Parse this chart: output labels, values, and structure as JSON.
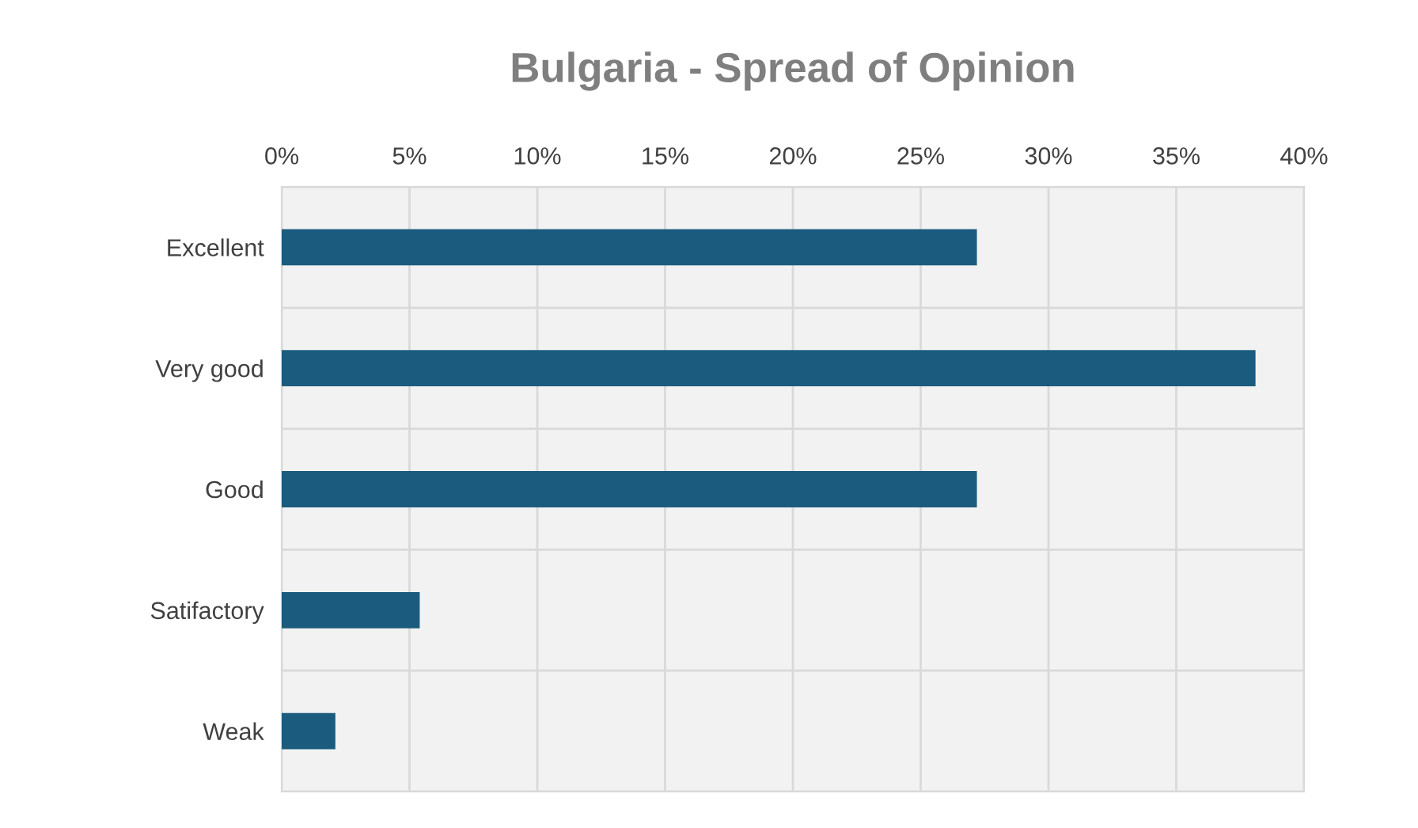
{
  "chart_data": {
    "type": "bar",
    "orientation": "horizontal",
    "title": "Bulgaria - Spread of Opinion",
    "categories": [
      "Excellent",
      "Very good",
      "Good",
      "Satifactory",
      "Weak"
    ],
    "values": [
      27.2,
      38.1,
      27.2,
      5.4,
      2.1
    ],
    "color": "#1b5c7e",
    "xlim": [
      0,
      40
    ],
    "xticks": [
      {
        "value": 0,
        "label": "0%"
      },
      {
        "value": 5,
        "label": "5%"
      },
      {
        "value": 10,
        "label": "10%"
      },
      {
        "value": 15,
        "label": "15%"
      },
      {
        "value": 20,
        "label": "20%"
      },
      {
        "value": 25,
        "label": "25%"
      },
      {
        "value": 30,
        "label": "30%"
      },
      {
        "value": 35,
        "label": "35%"
      },
      {
        "value": 40,
        "label": "40%"
      }
    ],
    "grid": true
  }
}
